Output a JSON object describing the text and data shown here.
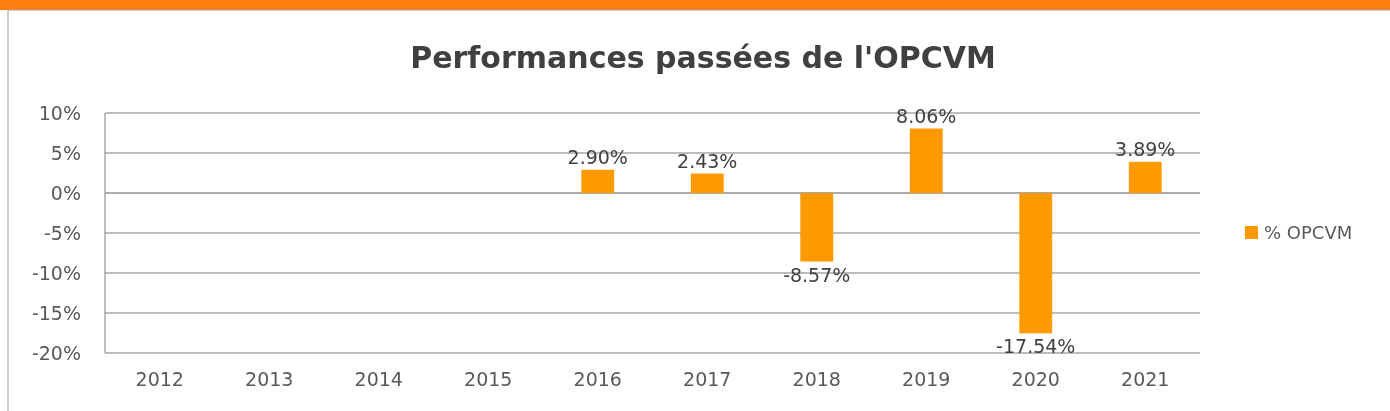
{
  "chart_data": {
    "type": "bar",
    "title": "Performances passées de l'OPCVM",
    "categories": [
      "2012",
      "2013",
      "2014",
      "2015",
      "2016",
      "2017",
      "2018",
      "2019",
      "2020",
      "2021"
    ],
    "series": [
      {
        "name": "% OPCVM",
        "color": "#ff9900",
        "values": [
          null,
          null,
          null,
          null,
          2.9,
          2.43,
          -8.57,
          8.06,
          -17.54,
          3.89
        ],
        "value_labels": [
          null,
          null,
          null,
          null,
          "2.90%",
          "2.43%",
          "-8.57%",
          "8.06%",
          "-17.54%",
          "3.89%"
        ]
      }
    ],
    "ylim": [
      -20,
      10
    ],
    "yticks": [
      {
        "value": -20,
        "label": "-20%"
      },
      {
        "value": -15,
        "label": "-15%"
      },
      {
        "value": -10,
        "label": "-10%"
      },
      {
        "value": -5,
        "label": "-5%"
      },
      {
        "value": 0,
        "label": "0%"
      },
      {
        "value": 5,
        "label": "5%"
      },
      {
        "value": 10,
        "label": "10%"
      }
    ],
    "grid": "y",
    "legend": "right"
  }
}
